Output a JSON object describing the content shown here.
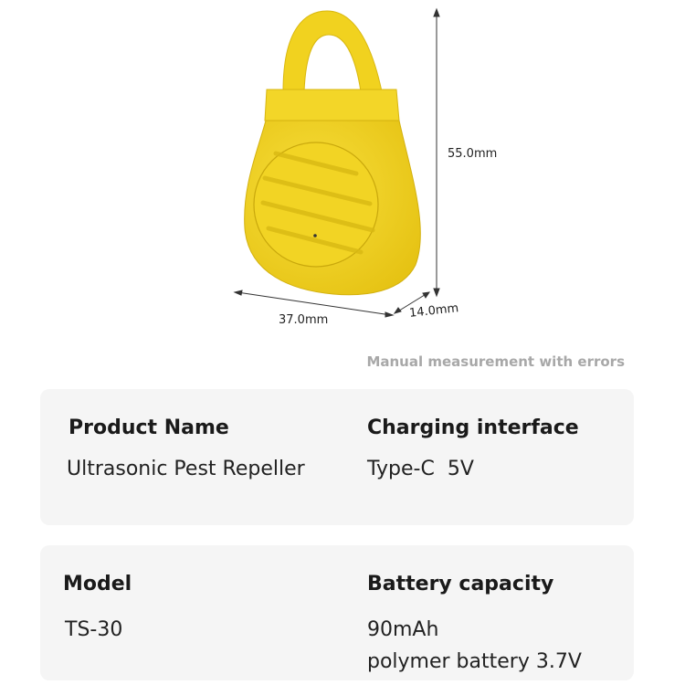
{
  "product": {
    "color": "#f2d321",
    "dimensions": {
      "height": "55.0mm",
      "width": "37.0mm",
      "depth": "14.0mm"
    }
  },
  "note": "Manual measurement with errors",
  "specs": [
    {
      "label": "Product Name",
      "value": "Ultrasonic Pest Repeller"
    },
    {
      "label": "Charging interface",
      "value": "Type-C  5V"
    },
    {
      "label": "Model",
      "value": "TS-30"
    },
    {
      "label": "Battery capacity",
      "value": "90mAh",
      "value2": "polymer battery 3.7V"
    }
  ]
}
